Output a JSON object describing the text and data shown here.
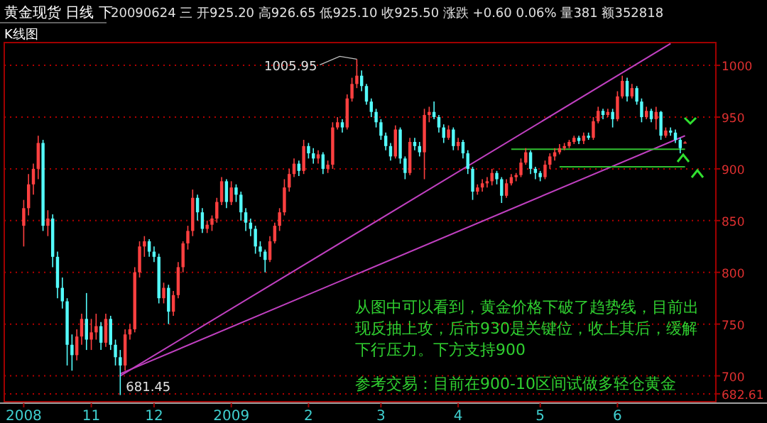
{
  "chart_data": {
    "type": "candlestick",
    "title": "黄金现货  日线  下",
    "subtitle": "20090624 三 开925.20 高926.65 低925.10 收925.50 涨跌 +0.60 0.06% 量381 额352818",
    "categories": [
      "2008",
      null,
      null,
      null,
      null,
      null,
      null,
      null,
      null,
      null,
      null,
      null,
      null,
      null,
      "11",
      null,
      null,
      null,
      null,
      null,
      null,
      null,
      null,
      null,
      null,
      null,
      null,
      "12",
      null,
      null,
      null,
      null,
      null,
      null,
      null,
      null,
      null,
      null,
      null,
      null,
      null,
      null,
      null,
      "2009",
      null,
      null,
      null,
      null,
      null,
      null,
      null,
      null,
      null,
      null,
      null,
      null,
      null,
      null,
      null,
      "2",
      null,
      null,
      null,
      null,
      null,
      null,
      null,
      null,
      null,
      null,
      null,
      null,
      null,
      null,
      "3",
      null,
      null,
      null,
      null,
      null,
      null,
      null,
      null,
      null,
      null,
      null,
      null,
      null,
      null,
      null,
      "4",
      null,
      null,
      null,
      null,
      null,
      null,
      null,
      null,
      null,
      null,
      null,
      null,
      null,
      null,
      null,
      null,
      "5",
      null,
      null,
      null,
      null,
      null,
      null,
      null,
      null,
      null,
      null,
      null,
      null,
      null,
      null,
      null,
      "6",
      null,
      null,
      null,
      null,
      null,
      null,
      null,
      null,
      null,
      null,
      null,
      null,
      null,
      null
    ],
    "ohlc": [
      [
        845,
        870,
        825,
        862
      ],
      [
        862,
        895,
        855,
        885
      ],
      [
        885,
        905,
        875,
        900
      ],
      [
        900,
        932,
        890,
        925
      ],
      [
        925,
        928,
        840,
        845
      ],
      [
        845,
        860,
        835,
        852
      ],
      [
        852,
        856,
        805,
        815
      ],
      [
        815,
        820,
        775,
        785
      ],
      [
        785,
        795,
        765,
        772
      ],
      [
        772,
        775,
        710,
        730
      ],
      [
        730,
        740,
        705,
        720
      ],
      [
        720,
        745,
        715,
        738
      ],
      [
        738,
        760,
        730,
        755
      ],
      [
        755,
        780,
        725,
        735
      ],
      [
        735,
        755,
        725,
        742
      ],
      [
        742,
        760,
        735,
        748
      ],
      [
        748,
        752,
        725,
        732
      ],
      [
        732,
        760,
        728,
        755
      ],
      [
        755,
        758,
        725,
        730
      ],
      [
        730,
        735,
        710,
        718
      ],
      [
        718,
        725,
        681.45,
        710
      ],
      [
        710,
        745,
        705,
        740
      ],
      [
        740,
        750,
        735,
        745
      ],
      [
        745,
        805,
        742,
        800
      ],
      [
        800,
        830,
        795,
        825
      ],
      [
        825,
        835,
        815,
        830
      ],
      [
        830,
        832,
        815,
        820
      ],
      [
        820,
        825,
        810,
        815
      ],
      [
        815,
        818,
        770,
        775
      ],
      [
        775,
        790,
        770,
        785
      ],
      [
        785,
        788,
        750,
        762
      ],
      [
        762,
        782,
        758,
        778
      ],
      [
        778,
        810,
        775,
        805
      ],
      [
        805,
        830,
        800,
        828
      ],
      [
        828,
        845,
        822,
        840
      ],
      [
        840,
        880,
        835,
        872
      ],
      [
        872,
        875,
        850,
        858
      ],
      [
        858,
        862,
        838,
        842
      ],
      [
        842,
        850,
        838,
        846
      ],
      [
        846,
        855,
        840,
        852
      ],
      [
        852,
        872,
        848,
        868
      ],
      [
        868,
        892,
        865,
        888
      ],
      [
        888,
        890,
        862,
        868
      ],
      [
        868,
        888,
        865,
        882
      ],
      [
        882,
        885,
        868,
        875
      ],
      [
        875,
        878,
        850,
        858
      ],
      [
        858,
        862,
        840,
        848
      ],
      [
        848,
        852,
        835,
        842
      ],
      [
        842,
        845,
        818,
        825
      ],
      [
        825,
        830,
        815,
        820
      ],
      [
        820,
        822,
        800,
        812
      ],
      [
        812,
        835,
        810,
        830
      ],
      [
        830,
        848,
        828,
        845
      ],
      [
        845,
        862,
        840,
        858
      ],
      [
        858,
        890,
        855,
        882
      ],
      [
        882,
        900,
        878,
        895
      ],
      [
        895,
        910,
        892,
        905
      ],
      [
        905,
        908,
        893,
        898
      ],
      [
        898,
        928,
        895,
        922
      ],
      [
        922,
        925,
        910,
        915
      ],
      [
        915,
        920,
        905,
        910
      ],
      [
        910,
        918,
        905,
        914
      ],
      [
        914,
        916,
        895,
        900
      ],
      [
        900,
        908,
        896,
        904
      ],
      [
        904,
        945,
        900,
        940
      ],
      [
        940,
        950,
        938,
        945
      ],
      [
        945,
        948,
        935,
        940
      ],
      [
        940,
        972,
        938,
        968
      ],
      [
        968,
        988,
        965,
        982
      ],
      [
        982,
        1005.95,
        978,
        990
      ],
      [
        990,
        995,
        975,
        980
      ],
      [
        980,
        982,
        962,
        965
      ],
      [
        965,
        968,
        950,
        955
      ],
      [
        955,
        958,
        940,
        945
      ],
      [
        945,
        948,
        928,
        932
      ],
      [
        932,
        935,
        918,
        922
      ],
      [
        922,
        925,
        908,
        912
      ],
      [
        912,
        942,
        910,
        938
      ],
      [
        938,
        940,
        905,
        910
      ],
      [
        910,
        912,
        890,
        896
      ],
      [
        896,
        930,
        894,
        926
      ],
      [
        926,
        930,
        918,
        922
      ],
      [
        922,
        926,
        912,
        916
      ],
      [
        916,
        958,
        890,
        952
      ],
      [
        952,
        960,
        945,
        955
      ],
      [
        955,
        965,
        948,
        950
      ],
      [
        950,
        952,
        935,
        940
      ],
      [
        940,
        943,
        925,
        930
      ],
      [
        930,
        942,
        928,
        938
      ],
      [
        938,
        940,
        918,
        922
      ],
      [
        922,
        930,
        918,
        926
      ],
      [
        926,
        928,
        910,
        915
      ],
      [
        915,
        918,
        895,
        900
      ],
      [
        900,
        902,
        870,
        878
      ],
      [
        878,
        885,
        875,
        882
      ],
      [
        882,
        890,
        878,
        886
      ],
      [
        886,
        892,
        882,
        888
      ],
      [
        888,
        900,
        884,
        896
      ],
      [
        896,
        898,
        885,
        890
      ],
      [
        890,
        892,
        867,
        874
      ],
      [
        874,
        890,
        872,
        886
      ],
      [
        886,
        895,
        884,
        892
      ],
      [
        892,
        896,
        888,
        894
      ],
      [
        894,
        910,
        892,
        906
      ],
      [
        906,
        920,
        904,
        916
      ],
      [
        916,
        918,
        895,
        900
      ],
      [
        900,
        902,
        890,
        896
      ],
      [
        896,
        898,
        888,
        892
      ],
      [
        892,
        908,
        890,
        904
      ],
      [
        904,
        915,
        900,
        912
      ],
      [
        912,
        920,
        908,
        916
      ],
      [
        916,
        924,
        914,
        920
      ],
      [
        920,
        925,
        918,
        922
      ],
      [
        922,
        928,
        920,
        926
      ],
      [
        926,
        932,
        924,
        930
      ],
      [
        930,
        932,
        924,
        927
      ],
      [
        927,
        935,
        924,
        932
      ],
      [
        932,
        935,
        928,
        930
      ],
      [
        930,
        950,
        928,
        946
      ],
      [
        946,
        960,
        944,
        956
      ],
      [
        956,
        958,
        948,
        952
      ],
      [
        952,
        958,
        950,
        955
      ],
      [
        955,
        958,
        940,
        948
      ],
      [
        948,
        975,
        946,
        970
      ],
      [
        970,
        990,
        968,
        985
      ],
      [
        985,
        988,
        965,
        970
      ],
      [
        970,
        982,
        968,
        978
      ],
      [
        978,
        980,
        962,
        965
      ],
      [
        965,
        968,
        945,
        950
      ],
      [
        950,
        960,
        948,
        956
      ],
      [
        956,
        958,
        945,
        948
      ],
      [
        948,
        960,
        938,
        955
      ],
      [
        955,
        956,
        928,
        932
      ],
      [
        932,
        940,
        930,
        937
      ],
      [
        937,
        940,
        932,
        935
      ],
      [
        935,
        938,
        925,
        928
      ],
      [
        928,
        930,
        915,
        920
      ],
      [
        925.2,
        926.65,
        925.1,
        925.5
      ]
    ],
    "colors": [
      "#ff4040",
      "#ff4040",
      "#ff4040",
      "#ff4040",
      "#54fcfc",
      "#ff4040",
      "#54fcfc",
      "#54fcfc",
      "#54fcfc",
      "#54fcfc",
      "#54fcfc",
      "#ff4040",
      "#ff4040",
      "#54fcfc",
      "#ff4040",
      "#ff4040",
      "#54fcfc",
      "#ff4040",
      "#54fcfc",
      "#54fcfc",
      "#54fcfc",
      "#ff4040",
      "#ff4040",
      "#ff4040",
      "#ff4040",
      "#ff4040",
      "#54fcfc",
      "#54fcfc",
      "#54fcfc",
      "#ff4040",
      "#54fcfc",
      "#ff4040",
      "#ff4040",
      "#ff4040",
      "#ff4040",
      "#ff4040",
      "#54fcfc",
      "#54fcfc",
      "#ff4040",
      "#ff4040",
      "#ff4040",
      "#ff4040",
      "#54fcfc",
      "#ff4040",
      "#54fcfc",
      "#54fcfc",
      "#54fcfc",
      "#54fcfc",
      "#54fcfc",
      "#54fcfc",
      "#54fcfc",
      "#ff4040",
      "#ff4040",
      "#ff4040",
      "#ff4040",
      "#ff4040",
      "#ff4040",
      "#54fcfc",
      "#ff4040",
      "#54fcfc",
      "#54fcfc",
      "#ff4040",
      "#54fcfc",
      "#ff4040",
      "#ff4040",
      "#ff4040",
      "#54fcfc",
      "#ff4040",
      "#ff4040",
      "#ff4040",
      "#54fcfc",
      "#54fcfc",
      "#54fcfc",
      "#54fcfc",
      "#54fcfc",
      "#54fcfc",
      "#54fcfc",
      "#ff4040",
      "#54fcfc",
      "#54fcfc",
      "#ff4040",
      "#54fcfc",
      "#54fcfc",
      "#ff4040",
      "#ff4040",
      "#54fcfc",
      "#54fcfc",
      "#54fcfc",
      "#ff4040",
      "#54fcfc",
      "#ff4040",
      "#54fcfc",
      "#54fcfc",
      "#54fcfc",
      "#ff4040",
      "#ff4040",
      "#ff4040",
      "#ff4040",
      "#54fcfc",
      "#54fcfc",
      "#ff4040",
      "#ff4040",
      "#ff4040",
      "#ff4040",
      "#ff4040",
      "#54fcfc",
      "#54fcfc",
      "#54fcfc",
      "#ff4040",
      "#ff4040",
      "#ff4040",
      "#ff4040",
      "#ff4040",
      "#ff4040",
      "#ff4040",
      "#54fcfc",
      "#ff4040",
      "#54fcfc",
      "#ff4040",
      "#ff4040",
      "#54fcfc",
      "#ff4040",
      "#54fcfc",
      "#ff4040",
      "#ff4040",
      "#54fcfc",
      "#ff4040",
      "#54fcfc",
      "#54fcfc",
      "#ff4040",
      "#54fcfc",
      "#ff4040",
      "#54fcfc",
      "#ff4040",
      "#54fcfc",
      "#54fcfc",
      "#54fcfc",
      "#ff4040"
    ],
    "series": [
      {
        "type": "line",
        "color": "#c040c0",
        "values": [
          null,
          null,
          null,
          null,
          null,
          null,
          null,
          null,
          null,
          null,
          null,
          null,
          null,
          null,
          null,
          null,
          null,
          null,
          null,
          null,
          700,
          null,
          null,
          null,
          null,
          null,
          null,
          null,
          null,
          null,
          null,
          null,
          null,
          null,
          null,
          null,
          null,
          null,
          null,
          null,
          null,
          null,
          null,
          null,
          null,
          null,
          null,
          null,
          null,
          null,
          null,
          null,
          null,
          null,
          null,
          null,
          null,
          null,
          null,
          null,
          null,
          null,
          null,
          null,
          null,
          null,
          null,
          null,
          null,
          null,
          null,
          null,
          null,
          null,
          null,
          null,
          null,
          null,
          null,
          null,
          null,
          null,
          null,
          null,
          null,
          null,
          null,
          null,
          null,
          null,
          null,
          null,
          null,
          null,
          null,
          null,
          null,
          null,
          null,
          null,
          null,
          null,
          null,
          null,
          null,
          null,
          null,
          null,
          null,
          null,
          null,
          null,
          null,
          null,
          null,
          null,
          null,
          null,
          null,
          null,
          null,
          null,
          null,
          null,
          null,
          null,
          null,
          null,
          null,
          null,
          null,
          null,
          null,
          null,
          1021,
          null,
          null,
          null
        ]
      },
      {
        "type": "line",
        "color": "#c040c0",
        "values": [
          null,
          null,
          null,
          null,
          null,
          null,
          null,
          null,
          null,
          null,
          null,
          null,
          null,
          null,
          null,
          null,
          null,
          null,
          null,
          null,
          702,
          null,
          null,
          null,
          null,
          null,
          null,
          null,
          null,
          null,
          null,
          null,
          null,
          null,
          null,
          null,
          null,
          null,
          null,
          null,
          null,
          null,
          null,
          null,
          null,
          null,
          null,
          null,
          null,
          null,
          null,
          null,
          null,
          null,
          null,
          null,
          null,
          null,
          null,
          null,
          null,
          null,
          null,
          null,
          null,
          null,
          null,
          null,
          null,
          null,
          null,
          null,
          null,
          null,
          null,
          null,
          null,
          null,
          null,
          null,
          null,
          null,
          null,
          null,
          null,
          null,
          null,
          null,
          null,
          null,
          null,
          null,
          null,
          null,
          null,
          null,
          null,
          null,
          null,
          null,
          null,
          null,
          null,
          null,
          null,
          null,
          null,
          null,
          null,
          null,
          null,
          null,
          null,
          null,
          null,
          null,
          null,
          null,
          null,
          null,
          null,
          null,
          null,
          null,
          null,
          null,
          null,
          null,
          null,
          null,
          null,
          null,
          null,
          null,
          null,
          null,
          null,
          932
        ]
      },
      {
        "type": "line",
        "color": "#30c030",
        "values": [
          null,
          null,
          null,
          null,
          null,
          null,
          null,
          null,
          null,
          null,
          null,
          null,
          null,
          null,
          null,
          null,
          null,
          null,
          null,
          null,
          null,
          null,
          null,
          null,
          null,
          null,
          null,
          null,
          null,
          null,
          null,
          null,
          null,
          null,
          null,
          null,
          null,
          null,
          null,
          null,
          null,
          null,
          null,
          null,
          null,
          null,
          null,
          null,
          null,
          null,
          null,
          null,
          null,
          null,
          null,
          null,
          null,
          null,
          null,
          null,
          null,
          null,
          null,
          null,
          null,
          null,
          null,
          null,
          null,
          null,
          null,
          null,
          null,
          null,
          null,
          null,
          null,
          null,
          null,
          null,
          null,
          null,
          null,
          null,
          null,
          null,
          null,
          null,
          null,
          null,
          null,
          null,
          null,
          null,
          null,
          null,
          null,
          null,
          null,
          null,
          null,
          919,
          null,
          null,
          null,
          null,
          null,
          null,
          null,
          null,
          null,
          null,
          null,
          null,
          null,
          null,
          null,
          null,
          null,
          null,
          null,
          null,
          null,
          null,
          null,
          null,
          null,
          null,
          null,
          null,
          null,
          null,
          null,
          null,
          null,
          null,
          null,
          919
        ]
      },
      {
        "type": "line",
        "color": "#30c030",
        "values": [
          null,
          null,
          null,
          null,
          null,
          null,
          null,
          null,
          null,
          null,
          null,
          null,
          null,
          null,
          null,
          null,
          null,
          null,
          null,
          null,
          null,
          null,
          null,
          null,
          null,
          null,
          null,
          null,
          null,
          null,
          null,
          null,
          null,
          null,
          null,
          null,
          null,
          null,
          null,
          null,
          null,
          null,
          null,
          null,
          null,
          null,
          null,
          null,
          null,
          null,
          null,
          null,
          null,
          null,
          null,
          null,
          null,
          null,
          null,
          null,
          null,
          null,
          null,
          null,
          null,
          null,
          null,
          null,
          null,
          null,
          null,
          null,
          null,
          null,
          null,
          null,
          null,
          null,
          null,
          null,
          null,
          null,
          null,
          null,
          null,
          null,
          null,
          null,
          null,
          null,
          null,
          null,
          null,
          null,
          null,
          null,
          null,
          null,
          null,
          null,
          null,
          null,
          null,
          null,
          null,
          null,
          null,
          null,
          null,
          null,
          null,
          902,
          null,
          null,
          null,
          null,
          null,
          null,
          null,
          null,
          null,
          null,
          null,
          null,
          null,
          null,
          null,
          null,
          null,
          null,
          null,
          null,
          null,
          null,
          null,
          null,
          null,
          902
        ]
      }
    ],
    "ylim": [
      675,
      1022
    ],
    "yticks": [
      {
        "value": 682.61,
        "label": "682.61"
      },
      700,
      750,
      800,
      850,
      900,
      950,
      1000
    ],
    "grid": "y",
    "legend": false,
    "annotations": [
      "K线图",
      "1005.95",
      "681.45",
      "从图中可以看到，黄金价格下破了趋势线，目前出现反抽上攻，后市930是关键位，收上其后，缓解下行压力。下方支持900",
      "参考交易：目前在900-10区间试做多轻仓黄金"
    ]
  }
}
